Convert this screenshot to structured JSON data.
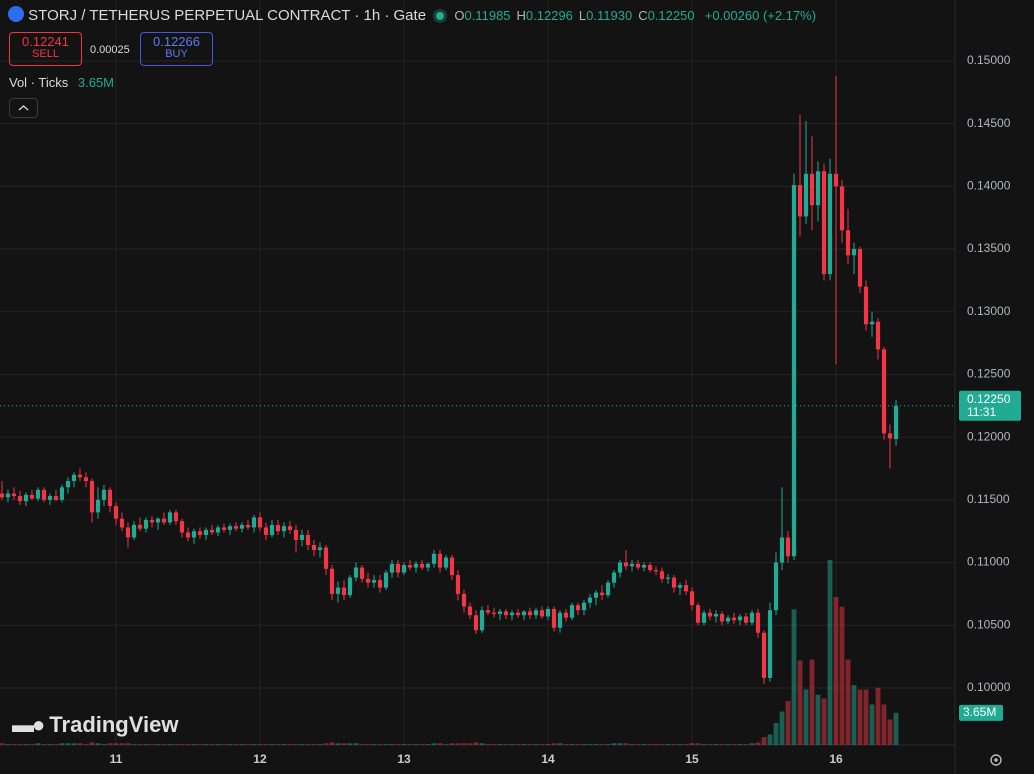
{
  "chart_data": {
    "type": "candlestick",
    "title": "STORJ / TETHERUS PERPETUAL CONTRACT · 1h · Gate",
    "ohlc": [
      {
        "key": "O",
        "value": "0.11985"
      },
      {
        "key": "H",
        "value": "0.12296"
      },
      {
        "key": "L",
        "value": "0.11930"
      },
      {
        "key": "C",
        "value": "0.12250"
      }
    ],
    "change": "+0.00260 (+2.17%)",
    "sell_price": "0.12241",
    "sell_label": "SELL",
    "spread": "0.00025",
    "buy_price": "0.12266",
    "buy_label": "BUY",
    "volume_indicator": "Vol · Ticks",
    "volume_value": "3.65M",
    "last_price": "0.12250",
    "countdown": "11:31",
    "volume_last_label": "3.65M",
    "watermark": "TradingView",
    "up_color": "#22ab94",
    "down_color": "#f23645",
    "ylim": [
      0.09545,
      0.15486
    ],
    "yticks": [
      {
        "value": 0.1,
        "label": "0.10000"
      },
      {
        "value": 0.105,
        "label": "0.10500"
      },
      {
        "value": 0.11,
        "label": "0.11000"
      },
      {
        "value": 0.115,
        "label": "0.11500"
      },
      {
        "value": 0.12,
        "label": "0.12000"
      },
      {
        "value": 0.125,
        "label": "0.12500"
      },
      {
        "value": 0.13,
        "label": "0.13000"
      },
      {
        "value": 0.135,
        "label": "0.13500"
      },
      {
        "value": 0.14,
        "label": "0.14000"
      },
      {
        "value": 0.145,
        "label": "0.14500"
      },
      {
        "value": 0.15,
        "label": "0.15000"
      }
    ],
    "xlim": [
      -0.33,
      158.83
    ],
    "xticks": [
      {
        "value": 19,
        "label": "11"
      },
      {
        "value": 43,
        "label": "12"
      },
      {
        "value": 67,
        "label": "13"
      },
      {
        "value": 91,
        "label": "14"
      },
      {
        "value": 115,
        "label": "15"
      },
      {
        "value": 139,
        "label": "16"
      }
    ],
    "grid": true,
    "candles": [
      [
        0.1155,
        0.1165,
        0.115,
        0.1152,
        0.2
      ],
      [
        0.1152,
        0.1158,
        0.1148,
        0.1155,
        0.1
      ],
      [
        0.1155,
        0.116,
        0.115,
        0.1153,
        0.1
      ],
      [
        0.1153,
        0.1157,
        0.1146,
        0.1149,
        0.1
      ],
      [
        0.1149,
        0.1156,
        0.1145,
        0.1154,
        0.1
      ],
      [
        0.1154,
        0.1158,
        0.115,
        0.1151,
        0.1
      ],
      [
        0.1151,
        0.116,
        0.1149,
        0.1158,
        0.2
      ],
      [
        0.1158,
        0.116,
        0.1148,
        0.115,
        0.1
      ],
      [
        0.115,
        0.1155,
        0.1146,
        0.1153,
        0.1
      ],
      [
        0.1153,
        0.1158,
        0.1149,
        0.115,
        0.1
      ],
      [
        0.115,
        0.1162,
        0.1148,
        0.116,
        0.2
      ],
      [
        0.116,
        0.1168,
        0.1155,
        0.1165,
        0.2
      ],
      [
        0.1165,
        0.1172,
        0.116,
        0.117,
        0.2
      ],
      [
        0.117,
        0.1175,
        0.1165,
        0.1168,
        0.2
      ],
      [
        0.1168,
        0.1172,
        0.116,
        0.1165,
        0.1
      ],
      [
        0.1165,
        0.1167,
        0.1132,
        0.114,
        0.3
      ],
      [
        0.114,
        0.116,
        0.1135,
        0.115,
        0.2
      ],
      [
        0.115,
        0.1162,
        0.1145,
        0.1158,
        0.1
      ],
      [
        0.1158,
        0.116,
        0.114,
        0.1145,
        0.2
      ],
      [
        0.1145,
        0.1148,
        0.113,
        0.1135,
        0.2
      ],
      [
        0.1135,
        0.114,
        0.1125,
        0.1128,
        0.2
      ],
      [
        0.1128,
        0.1132,
        0.1112,
        0.112,
        0.2
      ],
      [
        0.112,
        0.1133,
        0.1118,
        0.113,
        0.1
      ],
      [
        0.113,
        0.1136,
        0.1125,
        0.1127,
        0.1
      ],
      [
        0.1127,
        0.1136,
        0.1124,
        0.1134,
        0.1
      ],
      [
        0.1134,
        0.1137,
        0.1128,
        0.1132,
        0.1
      ],
      [
        0.1132,
        0.1136,
        0.1126,
        0.1135,
        0.1
      ],
      [
        0.1135,
        0.114,
        0.113,
        0.1132,
        0.1
      ],
      [
        0.1132,
        0.1142,
        0.113,
        0.114,
        0.1
      ],
      [
        0.114,
        0.1142,
        0.113,
        0.1133,
        0.1
      ],
      [
        0.1133,
        0.1135,
        0.112,
        0.1124,
        0.1
      ],
      [
        0.1124,
        0.1128,
        0.1117,
        0.112,
        0.1
      ],
      [
        0.112,
        0.1127,
        0.1115,
        0.1125,
        0.1
      ],
      [
        0.1125,
        0.1128,
        0.1119,
        0.1122,
        0.1
      ],
      [
        0.1122,
        0.1128,
        0.1118,
        0.1126,
        0.1
      ],
      [
        0.1126,
        0.113,
        0.1122,
        0.1124,
        0.1
      ],
      [
        0.1124,
        0.113,
        0.1121,
        0.1128,
        0.1
      ],
      [
        0.1128,
        0.1131,
        0.1124,
        0.1126,
        0.1
      ],
      [
        0.1126,
        0.1131,
        0.1122,
        0.1129,
        0.1
      ],
      [
        0.1129,
        0.1132,
        0.1125,
        0.1127,
        0.1
      ],
      [
        0.1127,
        0.1132,
        0.1124,
        0.113,
        0.1
      ],
      [
        0.113,
        0.1134,
        0.1126,
        0.1128,
        0.1
      ],
      [
        0.1128,
        0.1138,
        0.1124,
        0.1136,
        0.1
      ],
      [
        0.1136,
        0.114,
        0.1125,
        0.1128,
        0.1
      ],
      [
        0.1128,
        0.1132,
        0.1118,
        0.1122,
        0.1
      ],
      [
        0.1122,
        0.1134,
        0.112,
        0.113,
        0.1
      ],
      [
        0.113,
        0.1134,
        0.1122,
        0.1125,
        0.1
      ],
      [
        0.1125,
        0.1132,
        0.112,
        0.1129,
        0.1
      ],
      [
        0.1129,
        0.1133,
        0.1123,
        0.1126,
        0.1
      ],
      [
        0.1126,
        0.113,
        0.1108,
        0.1118,
        0.1
      ],
      [
        0.1118,
        0.1126,
        0.1113,
        0.1122,
        0.1
      ],
      [
        0.1122,
        0.1126,
        0.111,
        0.1114,
        0.1
      ],
      [
        0.1114,
        0.1118,
        0.1105,
        0.111,
        0.1
      ],
      [
        0.111,
        0.1116,
        0.1104,
        0.1112,
        0.1
      ],
      [
        0.1112,
        0.1114,
        0.109,
        0.1095,
        0.2
      ],
      [
        0.1095,
        0.1098,
        0.107,
        0.1075,
        0.3
      ],
      [
        0.1075,
        0.1085,
        0.1068,
        0.108,
        0.2
      ],
      [
        0.108,
        0.1086,
        0.107,
        0.1074,
        0.2
      ],
      [
        0.1074,
        0.109,
        0.1072,
        0.1088,
        0.2
      ],
      [
        0.1088,
        0.11,
        0.1085,
        0.1096,
        0.2
      ],
      [
        0.1096,
        0.1098,
        0.1084,
        0.1087,
        0.1
      ],
      [
        0.1087,
        0.1092,
        0.108,
        0.1084,
        0.1
      ],
      [
        0.1084,
        0.109,
        0.108,
        0.1086,
        0.1
      ],
      [
        0.1086,
        0.109,
        0.1076,
        0.108,
        0.1
      ],
      [
        0.108,
        0.1094,
        0.1078,
        0.1092,
        0.1
      ],
      [
        0.1092,
        0.1102,
        0.1088,
        0.1099,
        0.1
      ],
      [
        0.1099,
        0.1102,
        0.1088,
        0.1092,
        0.1
      ],
      [
        0.1092,
        0.11,
        0.109,
        0.1098,
        0.1
      ],
      [
        0.1098,
        0.1102,
        0.1094,
        0.1096,
        0.1
      ],
      [
        0.1096,
        0.1101,
        0.1092,
        0.1099,
        0.1
      ],
      [
        0.1099,
        0.1102,
        0.1094,
        0.1096,
        0.1
      ],
      [
        0.1096,
        0.11,
        0.1093,
        0.1099,
        0.1
      ],
      [
        0.1099,
        0.111,
        0.1096,
        0.1107,
        0.2
      ],
      [
        0.1107,
        0.111,
        0.1092,
        0.1096,
        0.2
      ],
      [
        0.1096,
        0.1106,
        0.1094,
        0.1104,
        0.1
      ],
      [
        0.1104,
        0.1106,
        0.1086,
        0.109,
        0.2
      ],
      [
        0.109,
        0.1094,
        0.107,
        0.1075,
        0.2
      ],
      [
        0.1075,
        0.1078,
        0.106,
        0.1065,
        0.2
      ],
      [
        0.1065,
        0.1068,
        0.1055,
        0.1058,
        0.2
      ],
      [
        0.1058,
        0.1062,
        0.1043,
        0.1046,
        0.3
      ],
      [
        0.1046,
        0.1065,
        0.1044,
        0.1062,
        0.2
      ],
      [
        0.1062,
        0.1066,
        0.1058,
        0.106,
        0.1
      ],
      [
        0.106,
        0.1064,
        0.1056,
        0.1059,
        0.1
      ],
      [
        0.1059,
        0.1063,
        0.1054,
        0.1061,
        0.1
      ],
      [
        0.1061,
        0.1063,
        0.1055,
        0.1058,
        0.1
      ],
      [
        0.1058,
        0.1062,
        0.1054,
        0.106,
        0.1
      ],
      [
        0.106,
        0.1063,
        0.1056,
        0.1058,
        0.1
      ],
      [
        0.1058,
        0.1062,
        0.1054,
        0.1061,
        0.1
      ],
      [
        0.1061,
        0.1064,
        0.1055,
        0.1058,
        0.1
      ],
      [
        0.1058,
        0.1064,
        0.1055,
        0.1062,
        0.1
      ],
      [
        0.1062,
        0.1065,
        0.1055,
        0.1057,
        0.1
      ],
      [
        0.1057,
        0.1065,
        0.1054,
        0.1063,
        0.1
      ],
      [
        0.1063,
        0.1065,
        0.1045,
        0.1048,
        0.2
      ],
      [
        0.1048,
        0.1062,
        0.1044,
        0.106,
        0.2
      ],
      [
        0.106,
        0.1063,
        0.1053,
        0.1056,
        0.1
      ],
      [
        0.1056,
        0.1068,
        0.1054,
        0.1066,
        0.1
      ],
      [
        0.1066,
        0.1068,
        0.1058,
        0.1062,
        0.1
      ],
      [
        0.1062,
        0.107,
        0.1058,
        0.1068,
        0.1
      ],
      [
        0.1068,
        0.1075,
        0.1064,
        0.1072,
        0.1
      ],
      [
        0.1072,
        0.1078,
        0.1066,
        0.1076,
        0.1
      ],
      [
        0.1076,
        0.1082,
        0.107,
        0.1074,
        0.1
      ],
      [
        0.1074,
        0.1086,
        0.1072,
        0.1084,
        0.1
      ],
      [
        0.1084,
        0.1094,
        0.108,
        0.1092,
        0.2
      ],
      [
        0.1092,
        0.1102,
        0.1088,
        0.11,
        0.2
      ],
      [
        0.11,
        0.111,
        0.1094,
        0.1097,
        0.2
      ],
      [
        0.1097,
        0.1102,
        0.1093,
        0.1099,
        0.1
      ],
      [
        0.1099,
        0.1102,
        0.1094,
        0.1096,
        0.1
      ],
      [
        0.1096,
        0.11,
        0.1093,
        0.1098,
        0.1
      ],
      [
        0.1098,
        0.11,
        0.1092,
        0.1094,
        0.1
      ],
      [
        0.1094,
        0.1097,
        0.109,
        0.1093,
        0.1
      ],
      [
        0.1093,
        0.1096,
        0.1084,
        0.1087,
        0.1
      ],
      [
        0.1087,
        0.1091,
        0.1083,
        0.1088,
        0.1
      ],
      [
        0.1088,
        0.109,
        0.1076,
        0.108,
        0.1
      ],
      [
        0.108,
        0.1084,
        0.1074,
        0.1082,
        0.1
      ],
      [
        0.1082,
        0.1086,
        0.1074,
        0.1077,
        0.1
      ],
      [
        0.1077,
        0.108,
        0.1062,
        0.1066,
        0.2
      ],
      [
        0.1066,
        0.1068,
        0.105,
        0.1052,
        0.2
      ],
      [
        0.1052,
        0.1062,
        0.105,
        0.106,
        0.1
      ],
      [
        0.106,
        0.1063,
        0.1054,
        0.1057,
        0.1
      ],
      [
        0.1057,
        0.1062,
        0.1052,
        0.1059,
        0.1
      ],
      [
        0.1059,
        0.1061,
        0.105,
        0.1053,
        0.1
      ],
      [
        0.1053,
        0.1058,
        0.1051,
        0.1056,
        0.1
      ],
      [
        0.1056,
        0.106,
        0.1051,
        0.1054,
        0.1
      ],
      [
        0.1054,
        0.1059,
        0.105,
        0.1057,
        0.1
      ],
      [
        0.1057,
        0.106,
        0.105,
        0.1052,
        0.1
      ],
      [
        0.1052,
        0.1062,
        0.105,
        0.106,
        0.2
      ],
      [
        0.106,
        0.1063,
        0.104,
        0.1044,
        0.3
      ],
      [
        0.1044,
        0.1046,
        0.1003,
        0.1008,
        0.9
      ],
      [
        0.1008,
        0.1068,
        0.1005,
        0.1062,
        1.2
      ],
      [
        0.1062,
        0.1108,
        0.1058,
        0.11,
        2.5
      ],
      [
        0.11,
        0.116,
        0.1094,
        0.112,
        3.8
      ],
      [
        0.112,
        0.1125,
        0.11,
        0.1105,
        5.0
      ],
      [
        0.1105,
        0.141,
        0.1102,
        0.1401,
        15.4
      ],
      [
        0.1401,
        0.1457,
        0.136,
        0.1376,
        9.6
      ],
      [
        0.1376,
        0.1452,
        0.137,
        0.141,
        6.3
      ],
      [
        0.141,
        0.144,
        0.1365,
        0.1385,
        9.7
      ],
      [
        0.1385,
        0.142,
        0.1372,
        0.1412,
        5.7
      ],
      [
        0.1412,
        0.1418,
        0.1325,
        0.133,
        5.3
      ],
      [
        0.133,
        0.1422,
        0.1325,
        0.141,
        21.0
      ],
      [
        0.141,
        0.1488,
        0.1258,
        0.14,
        16.8
      ],
      [
        0.14,
        0.1405,
        0.1355,
        0.1365,
        15.7
      ],
      [
        0.1365,
        0.1382,
        0.1338,
        0.1345,
        9.7
      ],
      [
        0.1345,
        0.1355,
        0.133,
        0.135,
        6.8
      ],
      [
        0.135,
        0.1352,
        0.1315,
        0.132,
        6.3
      ],
      [
        0.132,
        0.1325,
        0.1285,
        0.129,
        6.3
      ],
      [
        0.129,
        0.13,
        0.128,
        0.1292,
        4.6
      ],
      [
        0.1292,
        0.1295,
        0.1262,
        0.127,
        6.5
      ],
      [
        0.127,
        0.1272,
        0.1198,
        0.1203,
        4.6
      ],
      [
        0.1203,
        0.121,
        0.1175,
        0.1199,
        2.9
      ],
      [
        0.11985,
        0.12296,
        0.1193,
        0.1225,
        3.65
      ]
    ]
  }
}
